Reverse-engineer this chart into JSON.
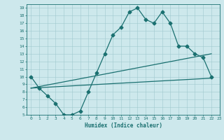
{
  "xlabel": "Humidex (Indice chaleur)",
  "xlim": [
    -0.5,
    23
  ],
  "ylim": [
    5,
    19.5
  ],
  "yticks": [
    5,
    6,
    7,
    8,
    9,
    10,
    11,
    12,
    13,
    14,
    15,
    16,
    17,
    18,
    19
  ],
  "xticks": [
    0,
    1,
    2,
    3,
    4,
    5,
    6,
    7,
    8,
    9,
    10,
    11,
    12,
    13,
    14,
    15,
    16,
    17,
    18,
    19,
    20,
    21,
    22,
    23
  ],
  "bg_color": "#cde8ec",
  "grid_color": "#9fc8ce",
  "line_color": "#1a7070",
  "line1_x": [
    0,
    1,
    2,
    3,
    4,
    5,
    6,
    7,
    8,
    9,
    10,
    11,
    12,
    13,
    14,
    15,
    16,
    17,
    18,
    19,
    20,
    21,
    22
  ],
  "line1_y": [
    10,
    8.5,
    7.5,
    6.5,
    5.0,
    5.0,
    5.5,
    8.0,
    10.5,
    13.0,
    15.5,
    16.5,
    18.5,
    19.0,
    17.5,
    17.0,
    18.5,
    17.0,
    14.0,
    14.0,
    13.0,
    12.5,
    10.0
  ],
  "line2_x": [
    0,
    22
  ],
  "line2_y": [
    8.5,
    13.0
  ],
  "line3_x": [
    0,
    22
  ],
  "line3_y": [
    8.5,
    9.8
  ],
  "marker": "D",
  "marker_size": 2.5,
  "line_width": 0.9
}
